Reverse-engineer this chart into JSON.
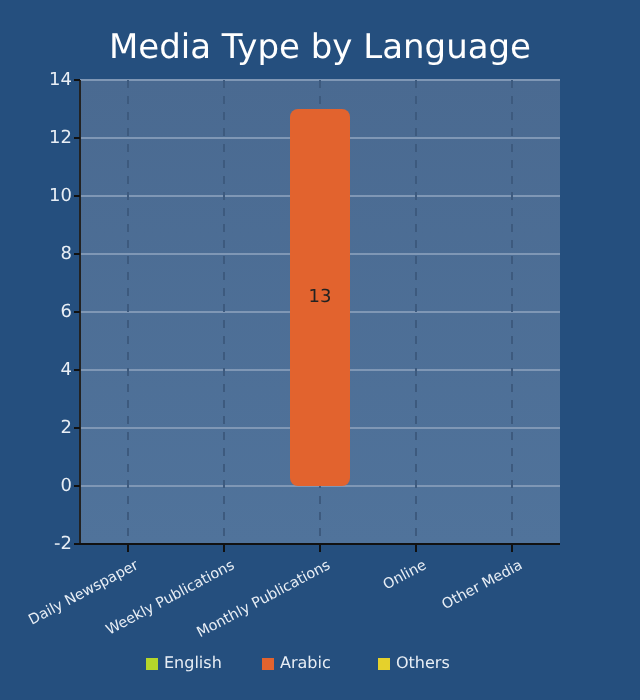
{
  "chart_data": {
    "type": "bar",
    "title": "Media Type by Language",
    "categories": [
      "Daily Newspaper",
      "Weekly Publications",
      "Monthly Publications",
      "Online",
      "Other Media"
    ],
    "series": [
      {
        "name": "English",
        "color": "#b5d62a",
        "values": [
          null,
          null,
          null,
          null,
          null
        ]
      },
      {
        "name": "Arabic",
        "color": "#e2632e",
        "values": [
          null,
          null,
          13,
          null,
          null
        ]
      },
      {
        "name": "Others",
        "color": "#e5d12c",
        "values": [
          null,
          null,
          null,
          null,
          null
        ]
      }
    ],
    "ylim": [
      -2,
      14
    ],
    "yticks": [
      -2,
      0,
      2,
      4,
      6,
      8,
      10,
      12,
      14
    ],
    "grid": true,
    "legend": "bottom",
    "data_labels": true
  }
}
